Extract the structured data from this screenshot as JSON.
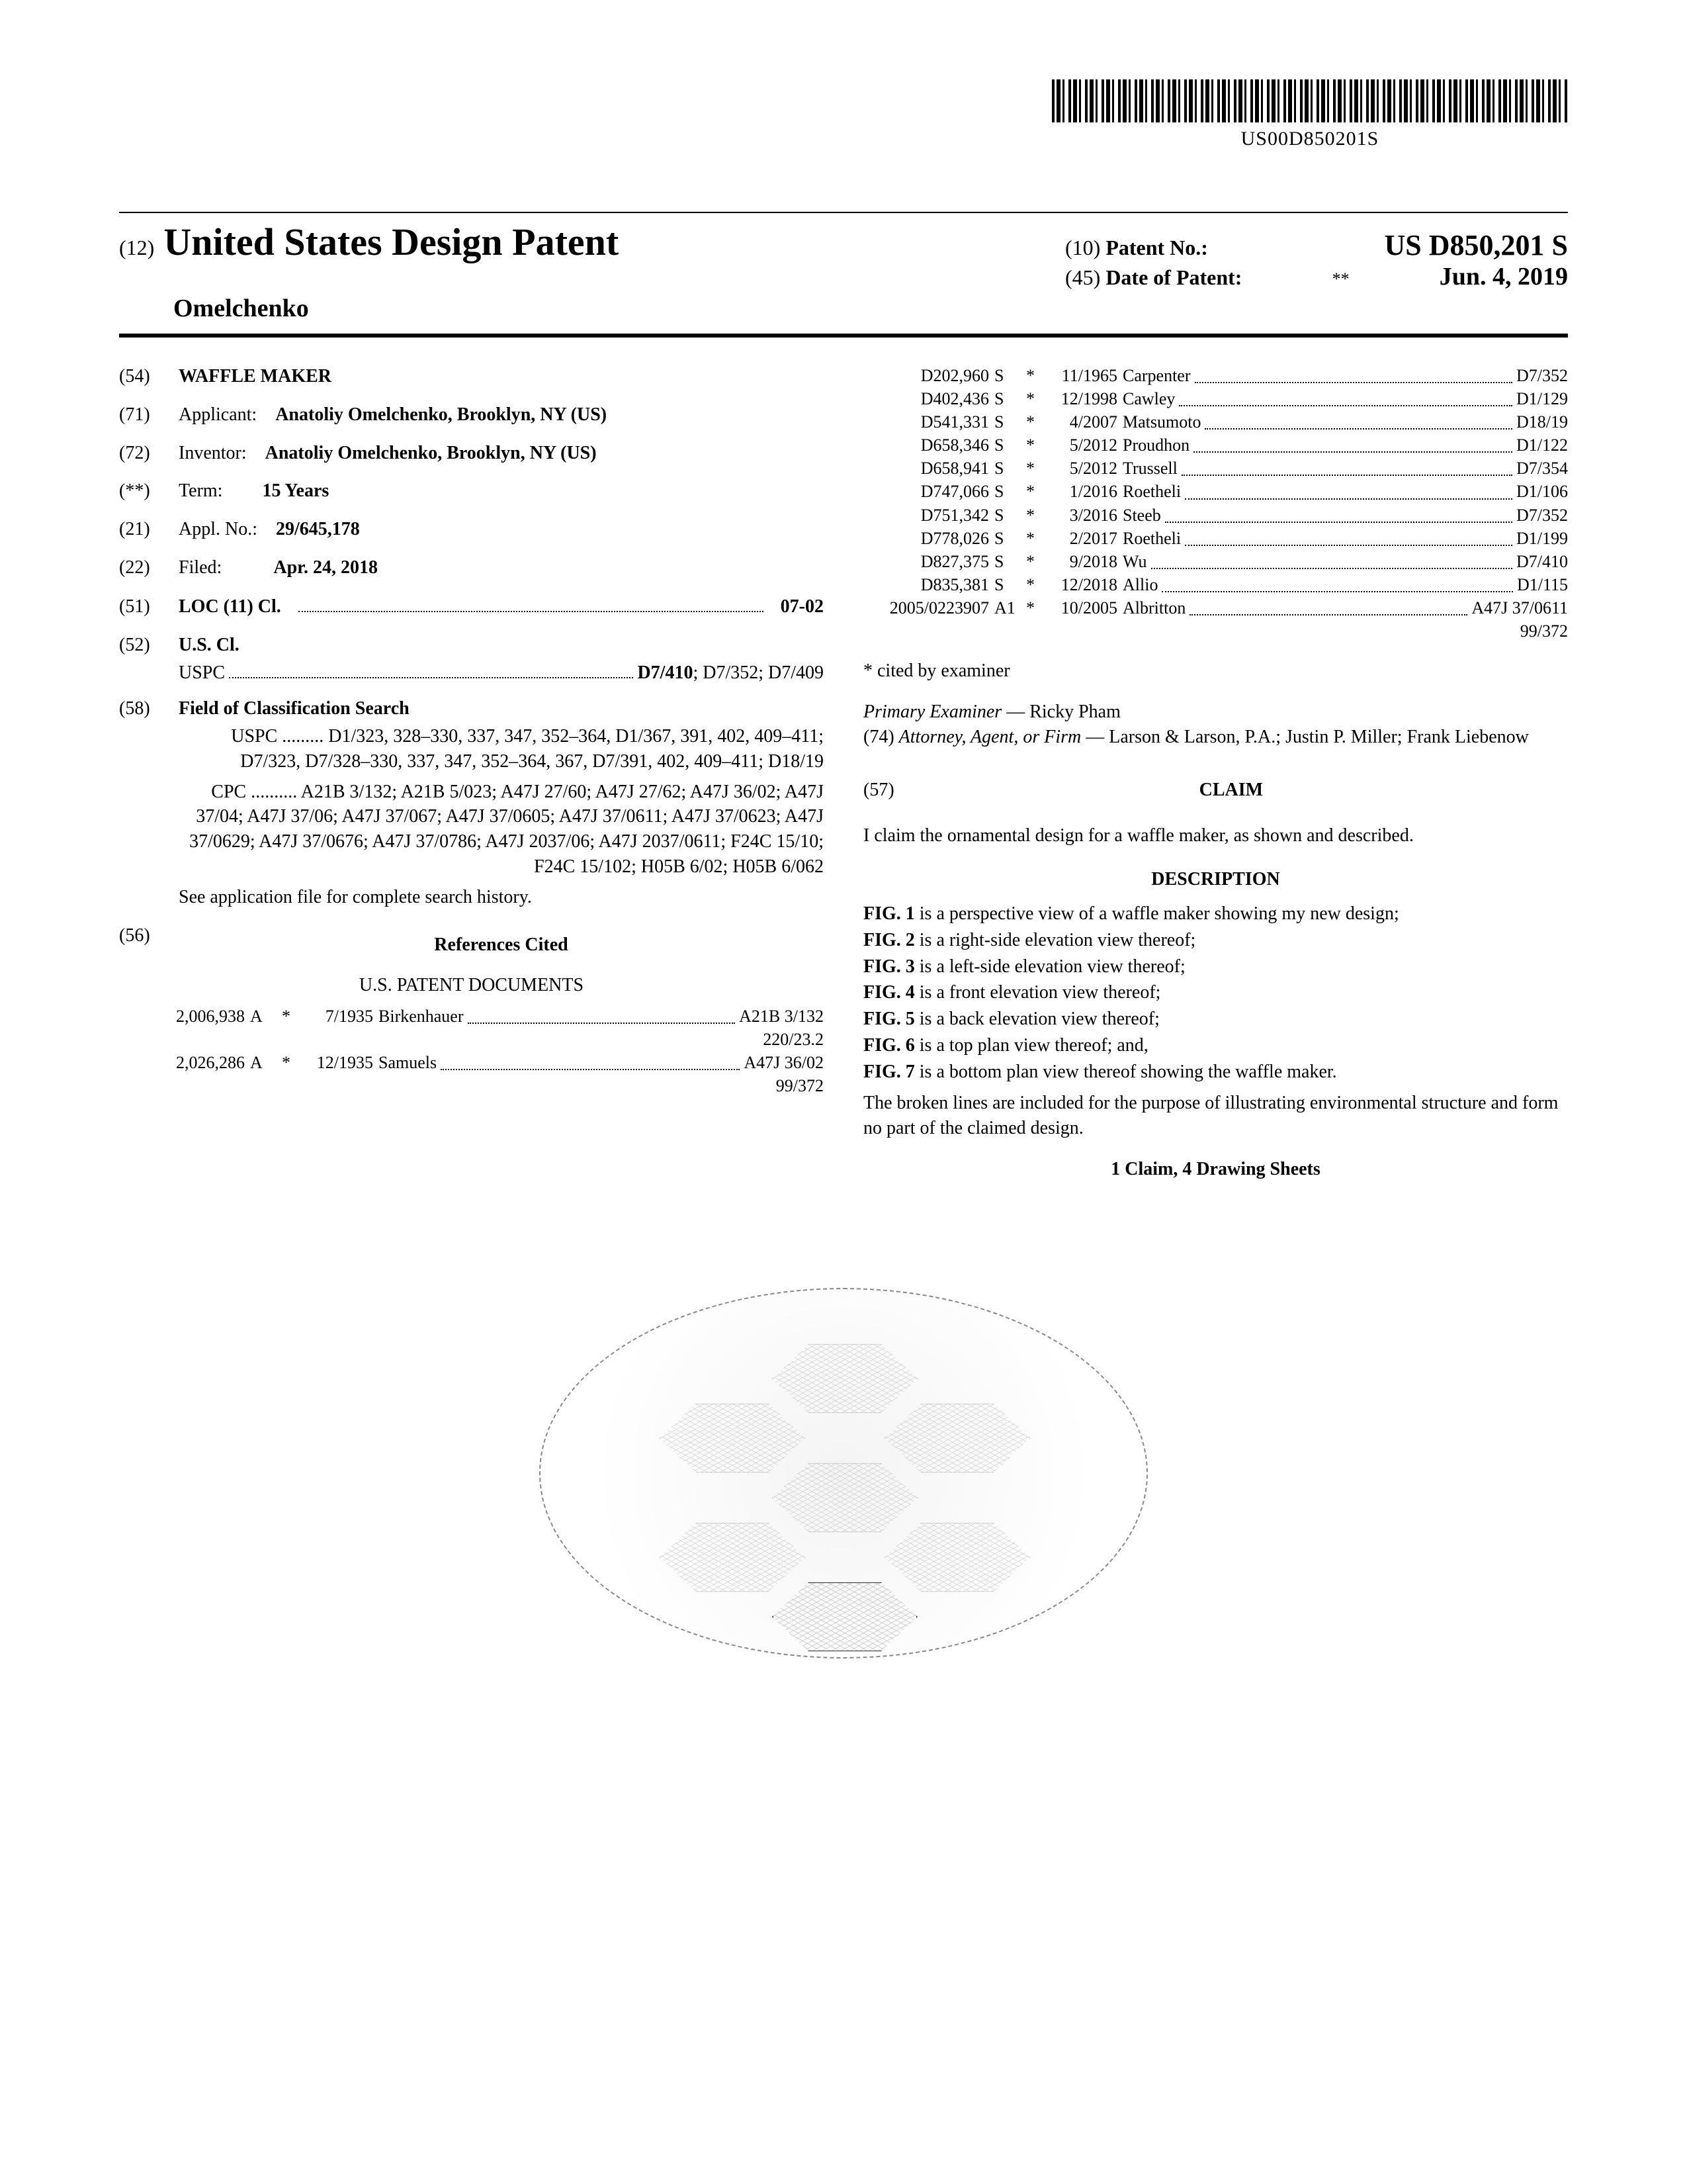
{
  "barcode_text": "US00D850201S",
  "header": {
    "pub_code": "(12)",
    "pub_type": "United States Design Patent",
    "inventor_surname": "Omelchenko",
    "right": {
      "patno_code": "(10)",
      "patno_label": "Patent No.:",
      "patno_value": "US D850,201 S",
      "date_code": "(45)",
      "date_label": "Date of Patent:",
      "date_star": "**",
      "date_value": "Jun. 4, 2019"
    }
  },
  "left_col": {
    "title_code": "(54)",
    "title": "WAFFLE MAKER",
    "applicant_code": "(71)",
    "applicant_label": "Applicant:",
    "applicant_value": "Anatoliy Omelchenko, Brooklyn, NY (US)",
    "inventor_code": "(72)",
    "inventor_label": "Inventor:",
    "inventor_value": "Anatoliy Omelchenko, Brooklyn, NY (US)",
    "term_code": "(**)",
    "term_label": "Term:",
    "term_value": "15 Years",
    "appl_code": "(21)",
    "appl_label": "Appl. No.:",
    "appl_value": "29/645,178",
    "filed_code": "(22)",
    "filed_label": "Filed:",
    "filed_value": "Apr. 24, 2018",
    "loc_code": "(51)",
    "loc_label": "LOC (11) Cl.",
    "loc_value": "07-02",
    "uscl_code": "(52)",
    "uscl_label": "U.S. Cl.",
    "uspc_label": "USPC",
    "uspc_value": "D7/410; D7/352; D7/409",
    "search_code": "(58)",
    "search_label": "Field of Classification Search",
    "uspc_search": "USPC ......... D1/323, 328–330, 337, 347, 352–364, D1/367, 391, 402, 409–411; D7/323, D7/328–330, 337, 347, 352–364, 367, D7/391, 402, 409–411; D18/19",
    "cpc_search": "CPC .......... A21B 3/132; A21B 5/023; A47J 27/60; A47J 27/62; A47J 36/02; A47J 37/04; A47J 37/06; A47J 37/067; A47J 37/0605; A47J 37/0611; A47J 37/0623; A47J 37/0629; A47J 37/0676; A47J 37/0786; A47J 2037/06; A47J 2037/0611; F24C 15/10; F24C 15/102; H05B 6/02; H05B 6/062",
    "search_note": "See application file for complete search history.",
    "refs_code": "(56)",
    "refs_label": "References Cited",
    "refs_sub": "U.S. PATENT DOCUMENTS",
    "refs_left": [
      {
        "no": "2,006,938",
        "k": "A",
        "s": "*",
        "d": "7/1935",
        "n": "Birkenhauer",
        "c": "A21B 3/132",
        "cont": "220/23.2"
      },
      {
        "no": "2,026,286",
        "k": "A",
        "s": "*",
        "d": "12/1935",
        "n": "Samuels",
        "c": "A47J 36/02",
        "cont": "99/372"
      }
    ]
  },
  "right_col": {
    "refs": [
      {
        "no": "D202,960",
        "k": "S",
        "s": "*",
        "d": "11/1965",
        "n": "Carpenter",
        "c": "D7/352"
      },
      {
        "no": "D402,436",
        "k": "S",
        "s": "*",
        "d": "12/1998",
        "n": "Cawley",
        "c": "D1/129"
      },
      {
        "no": "D541,331",
        "k": "S",
        "s": "*",
        "d": "4/2007",
        "n": "Matsumoto",
        "c": "D18/19"
      },
      {
        "no": "D658,346",
        "k": "S",
        "s": "*",
        "d": "5/2012",
        "n": "Proudhon",
        "c": "D1/122"
      },
      {
        "no": "D658,941",
        "k": "S",
        "s": "*",
        "d": "5/2012",
        "n": "Trussell",
        "c": "D7/354"
      },
      {
        "no": "D747,066",
        "k": "S",
        "s": "*",
        "d": "1/2016",
        "n": "Roetheli",
        "c": "D1/106"
      },
      {
        "no": "D751,342",
        "k": "S",
        "s": "*",
        "d": "3/2016",
        "n": "Steeb",
        "c": "D7/352"
      },
      {
        "no": "D778,026",
        "k": "S",
        "s": "*",
        "d": "2/2017",
        "n": "Roetheli",
        "c": "D1/199"
      },
      {
        "no": "D827,375",
        "k": "S",
        "s": "*",
        "d": "9/2018",
        "n": "Wu",
        "c": "D7/410"
      },
      {
        "no": "D835,381",
        "k": "S",
        "s": "*",
        "d": "12/2018",
        "n": "Allio",
        "c": "D1/115"
      },
      {
        "no": "2005/0223907",
        "k": "A1",
        "s": "*",
        "d": "10/2005",
        "n": "Albritton",
        "c": "A47J 37/0611",
        "cont": "99/372"
      }
    ],
    "cited_note": "* cited by examiner",
    "examiner_label": "Primary Examiner",
    "examiner_value": "Ricky Pham",
    "attorney_code": "(74)",
    "attorney_label": "Attorney, Agent, or Firm",
    "attorney_value": "Larson & Larson, P.A.; Justin P. Miller; Frank Liebenow",
    "claim_code": "(57)",
    "claim_heading": "CLAIM",
    "claim_text": "I claim the ornamental design for a waffle maker, as shown and described.",
    "desc_heading": "DESCRIPTION",
    "desc": [
      "FIG. 1 is a perspective view of a waffle maker showing my new design;",
      "FIG. 2 is a right-side elevation view thereof;",
      "FIG. 3 is a left-side elevation view thereof;",
      "FIG. 4 is a front elevation view thereof;",
      "FIG. 5 is a back elevation view thereof;",
      "FIG. 6 is a top plan view thereof; and,",
      "FIG. 7 is a bottom plan view thereof showing the waffle maker."
    ],
    "broken_lines": "The broken lines are included for the purpose of illustrating environmental structure and form no part of the claimed design.",
    "footer": "1 Claim, 4 Drawing Sheets"
  },
  "colors": {
    "text": "#000000",
    "bg": "#ffffff",
    "dash": "#888888"
  }
}
